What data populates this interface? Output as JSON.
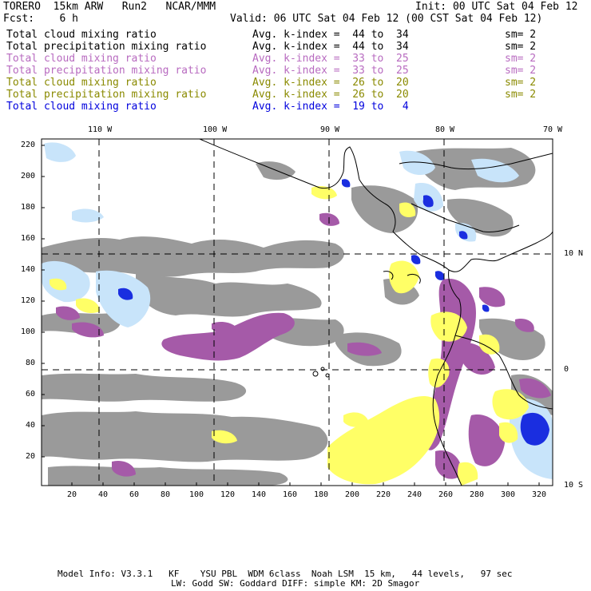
{
  "header": {
    "model": "TORERO  15km ARW   Run2   NCAR/MMM",
    "init": "Init: 00 UTC Sat 04 Feb 12",
    "fcst": "Fcst:    6 h",
    "valid": "Valid: 06 UTC Sat 04 Feb 12 (00 CST Sat 04 Feb 12)"
  },
  "legend": [
    {
      "label": "Total cloud mixing ratio",
      "avg": "Avg. k-index =  44 to  34",
      "sm": "sm= 2",
      "color": "#000000"
    },
    {
      "label": "Total precipitation mixing ratio",
      "avg": "Avg. k-index =  44 to  34",
      "sm": "sm= 2",
      "color": "#000000"
    },
    {
      "label": "Total cloud mixing ratio",
      "avg": "Avg. k-index =  33 to  25",
      "sm": "sm= 2",
      "color": "#b86bc0"
    },
    {
      "label": "Total precipitation mixing ratio",
      "avg": "Avg. k-index =  33 to  25",
      "sm": "sm= 2",
      "color": "#b86bc0"
    },
    {
      "label": "Total cloud mixing ratio",
      "avg": "Avg. k-index =  26 to  20",
      "sm": "sm= 2",
      "color": "#8a8a00"
    },
    {
      "label": "Total precipitation mixing ratio",
      "avg": "Avg. k-index =  26 to  20",
      "sm": "sm= 2",
      "color": "#8a8a00"
    },
    {
      "label": "Total cloud mixing ratio",
      "avg": "Avg. k-index =  19 to   4",
      "sm": "",
      "color": "#0000dd"
    }
  ],
  "axes": {
    "top_lon": [
      "110 W",
      "100 W",
      "90 W",
      "80 W",
      "70 W"
    ],
    "right_lat": [
      "10 N",
      "0",
      "10 S"
    ],
    "left_ticks": [
      "220",
      "200",
      "180",
      "160",
      "140",
      "120",
      "100",
      "80",
      "60",
      "40",
      "20"
    ],
    "bottom_ticks": [
      "20",
      "40",
      "60",
      "80",
      "100",
      "120",
      "140",
      "160",
      "180",
      "200",
      "220",
      "240",
      "260",
      "280",
      "300",
      "320"
    ]
  },
  "footer": {
    "line1": "Model Info: V3.3.1   KF    YSU PBL  WDM 6class  Noah LSM  15 km,   44 levels,   97 sec",
    "line2": "LW: Godd SW: Goddard DIFF: simple KM: 2D Smagor"
  },
  "colors": {
    "gray": "#9a9a9a",
    "purple": "#a55aa8",
    "yellow": "#ffff66",
    "lightblue": "#c8e4fa",
    "blue": "#1a2ee0"
  }
}
